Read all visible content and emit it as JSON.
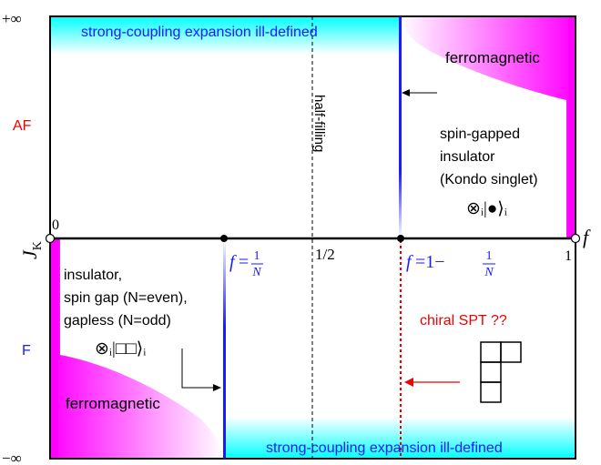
{
  "axes": {
    "y_top": "+∞",
    "y_bottom": "−∞",
    "y_label": "J",
    "y_label_sub": "K",
    "origin": "0",
    "x_end": "1",
    "x_label": "f"
  },
  "regions": {
    "af": "AF",
    "f": "F",
    "top_band": "strong-coupling expansion ill-defined",
    "bottom_band": "strong-coupling expansion ill-defined",
    "ferro_top": "ferromagnetic",
    "ferro_bottom": "ferromagnetic"
  },
  "lines": {
    "half_filling": "half-filling",
    "half_value": "1/2"
  },
  "fillings": {
    "left_prefix": "f",
    "left_eq": "=",
    "right_prefix": "f",
    "right_eq": "=1−",
    "num": "1",
    "den": "N"
  },
  "annotations": {
    "spin_gapped": [
      "spin-gapped",
      "insulator",
      "(Kondo singlet)"
    ],
    "kondo_state": "⊗ᵢ|●⟩ᵢ",
    "insulator": [
      "insulator,",
      "spin gap (N=even),",
      "gapless (N=odd)"
    ],
    "box_state": "⊗ᵢ|□□⟩ᵢ",
    "chiral": "chiral SPT ??"
  },
  "colors": {
    "cyan": "#00ffff",
    "magenta": "#ff00ff",
    "blue": "#1a1aff",
    "red": "#ee0000"
  }
}
